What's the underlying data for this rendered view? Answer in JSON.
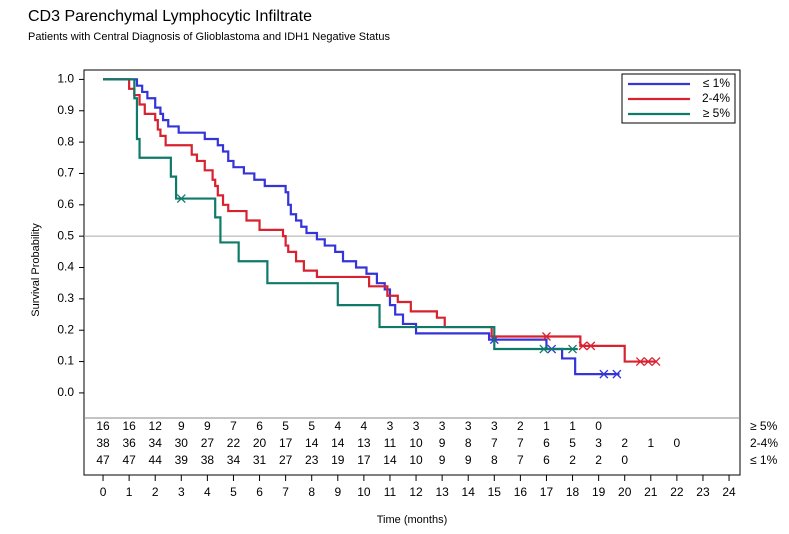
{
  "chart_data": {
    "type": "step",
    "title": "CD3 Parenchymal Lymphocytic Infiltrate",
    "subtitle": "Patients with Central Diagnosis of Glioblastoma and IDH1 Negative Status",
    "x_label": "Time (months)",
    "y_label": "Survival Probability",
    "xlim": [
      -0.73,
      24.42
    ],
    "ylim": [
      -0.08,
      1.03
    ],
    "xticks": [
      0,
      1,
      2,
      3,
      4,
      5,
      6,
      7,
      8,
      9,
      10,
      11,
      12,
      13,
      14,
      15,
      16,
      17,
      18,
      19,
      20,
      21,
      22,
      23,
      24
    ],
    "yticks": [
      {
        "value": 0,
        "label": "0.0"
      },
      0.1,
      0.2,
      0.3,
      0.4,
      0.5,
      0.6,
      0.7,
      0.8,
      0.9,
      {
        "value": 1,
        "label": "1.0"
      }
    ],
    "refline": 0.5,
    "legend": "top-right",
    "series": [
      {
        "name": "≤ 1%",
        "color": "#3434d8",
        "x": [
          0,
          1.3,
          1.5,
          1.7,
          2.0,
          2.2,
          2.3,
          2.5,
          2.9,
          3.9,
          4.4,
          4.6,
          4.8,
          5.0,
          5.4,
          5.8,
          6.2,
          7.0,
          7.1,
          7.2,
          7.4,
          7.6,
          7.8,
          8.2,
          8.5,
          8.9,
          9.2,
          9.7,
          10.1,
          10.5,
          10.8,
          11.0,
          11.2,
          11.5,
          12.0,
          14.8,
          17.0,
          17.6,
          18.1,
          19.8
        ],
        "values": [
          1.0,
          0.98,
          0.96,
          0.94,
          0.91,
          0.89,
          0.87,
          0.85,
          0.83,
          0.81,
          0.79,
          0.77,
          0.74,
          0.72,
          0.7,
          0.68,
          0.66,
          0.64,
          0.6,
          0.57,
          0.55,
          0.53,
          0.51,
          0.49,
          0.47,
          0.45,
          0.42,
          0.4,
          0.38,
          0.35,
          0.33,
          0.28,
          0.25,
          0.22,
          0.19,
          0.17,
          0.14,
          0.11,
          0.06,
          0.06
        ],
        "censor_x": [
          15.0,
          17.2,
          19.2,
          19.7
        ],
        "censor_y": [
          0.17,
          0.14,
          0.06,
          0.06
        ],
        "at_risk": [
          47,
          47,
          44,
          39,
          38,
          34,
          31,
          27,
          23,
          19,
          17,
          14,
          10,
          9,
          9,
          8,
          7,
          6,
          2,
          2,
          0
        ]
      },
      {
        "name": "2-4%",
        "color": "#d82230",
        "x": [
          0,
          1.0,
          1.2,
          1.4,
          1.6,
          2.0,
          2.1,
          2.2,
          2.4,
          3.4,
          3.6,
          3.9,
          4.2,
          4.3,
          4.4,
          4.6,
          4.8,
          5.5,
          6.0,
          6.9,
          7.0,
          7.1,
          7.4,
          7.7,
          8.2,
          10.2,
          10.9,
          11.3,
          11.8,
          12.8,
          13.1,
          14.9,
          18.3,
          20.0,
          21.2
        ],
        "values": [
          1.0,
          0.97,
          0.95,
          0.92,
          0.89,
          0.87,
          0.84,
          0.82,
          0.79,
          0.76,
          0.74,
          0.71,
          0.68,
          0.66,
          0.63,
          0.6,
          0.58,
          0.55,
          0.52,
          0.5,
          0.47,
          0.45,
          0.42,
          0.39,
          0.37,
          0.34,
          0.31,
          0.29,
          0.26,
          0.24,
          0.21,
          0.18,
          0.15,
          0.1,
          0.1
        ],
        "censor_x": [
          17.0,
          18.4,
          18.7,
          20.6,
          20.9,
          21.2
        ],
        "censor_y": [
          0.18,
          0.15,
          0.15,
          0.1,
          0.1,
          0.1
        ],
        "at_risk": [
          38,
          36,
          34,
          30,
          27,
          22,
          20,
          17,
          14,
          14,
          13,
          11,
          10,
          9,
          8,
          7,
          7,
          6,
          5,
          3,
          2,
          1,
          0
        ]
      },
      {
        "name": "≥ 5%",
        "color": "#0f7a68",
        "x": [
          0,
          1.2,
          1.3,
          1.4,
          2.6,
          2.8,
          4.3,
          4.5,
          5.2,
          6.3,
          9.0,
          10.6,
          15.0,
          18.2
        ],
        "values": [
          1.0,
          0.94,
          0.81,
          0.75,
          0.69,
          0.62,
          0.56,
          0.48,
          0.42,
          0.35,
          0.28,
          0.21,
          0.14,
          0.14
        ],
        "censor_x": [
          3.0,
          16.9,
          18.0
        ],
        "censor_y": [
          0.62,
          0.14,
          0.14
        ],
        "at_risk": [
          16,
          16,
          12,
          9,
          9,
          7,
          6,
          5,
          5,
          4,
          4,
          3,
          3,
          3,
          3,
          3,
          2,
          1,
          1,
          0
        ]
      }
    ]
  }
}
